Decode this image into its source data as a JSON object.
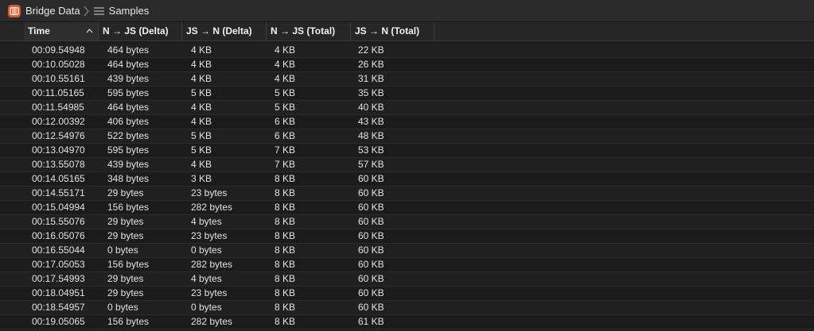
{
  "jumpbar": {
    "app_icon": "instrument-icon",
    "crumb1": "Bridge Data",
    "separator_icon": "chevron-right-icon",
    "list_icon": "list-icon",
    "crumb2": "Samples"
  },
  "table": {
    "columns": [
      "Time",
      "N → JS (Delta)",
      "JS → N (Delta)",
      "N → JS (Total)",
      "JS → N (Total)"
    ],
    "sort_icon": "chevron-up-icon",
    "rows": [
      [
        "00:09.54948",
        "464 bytes",
        "4 KB",
        "4 KB",
        "22 KB"
      ],
      [
        "00:10.05028",
        "464 bytes",
        "4 KB",
        "4 KB",
        "26 KB"
      ],
      [
        "00:10.55161",
        "439 bytes",
        "4 KB",
        "4 KB",
        "31 KB"
      ],
      [
        "00:11.05165",
        "595 bytes",
        "5 KB",
        "5 KB",
        "35 KB"
      ],
      [
        "00:11.54985",
        "464 bytes",
        "4 KB",
        "5 KB",
        "40 KB"
      ],
      [
        "00:12.00392",
        "406 bytes",
        "4 KB",
        "6 KB",
        "43 KB"
      ],
      [
        "00:12.54976",
        "522 bytes",
        "5 KB",
        "6 KB",
        "48 KB"
      ],
      [
        "00:13.04970",
        "595 bytes",
        "5 KB",
        "7 KB",
        "53 KB"
      ],
      [
        "00:13.55078",
        "439 bytes",
        "4 KB",
        "7 KB",
        "57 KB"
      ],
      [
        "00:14.05165",
        "348 bytes",
        "3 KB",
        "8 KB",
        "60 KB"
      ],
      [
        "00:14.55171",
        "29 bytes",
        "23 bytes",
        "8 KB",
        "60 KB"
      ],
      [
        "00:15.04994",
        "156 bytes",
        "282 bytes",
        "8 KB",
        "60 KB"
      ],
      [
        "00:15.55076",
        "29 bytes",
        "4 bytes",
        "8 KB",
        "60 KB"
      ],
      [
        "00:16.05076",
        "29 bytes",
        "23 bytes",
        "8 KB",
        "60 KB"
      ],
      [
        "00:16.55044",
        "0 bytes",
        "0 bytes",
        "8 KB",
        "60 KB"
      ],
      [
        "00:17.05053",
        "156 bytes",
        "282 bytes",
        "8 KB",
        "60 KB"
      ],
      [
        "00:17.54993",
        "29 bytes",
        "4 bytes",
        "8 KB",
        "60 KB"
      ],
      [
        "00:18.04951",
        "29 bytes",
        "23 bytes",
        "8 KB",
        "60 KB"
      ],
      [
        "00:18.54957",
        "0 bytes",
        "0 bytes",
        "8 KB",
        "60 KB"
      ],
      [
        "00:19.05065",
        "156 bytes",
        "282 bytes",
        "8 KB",
        "61 KB"
      ]
    ]
  }
}
